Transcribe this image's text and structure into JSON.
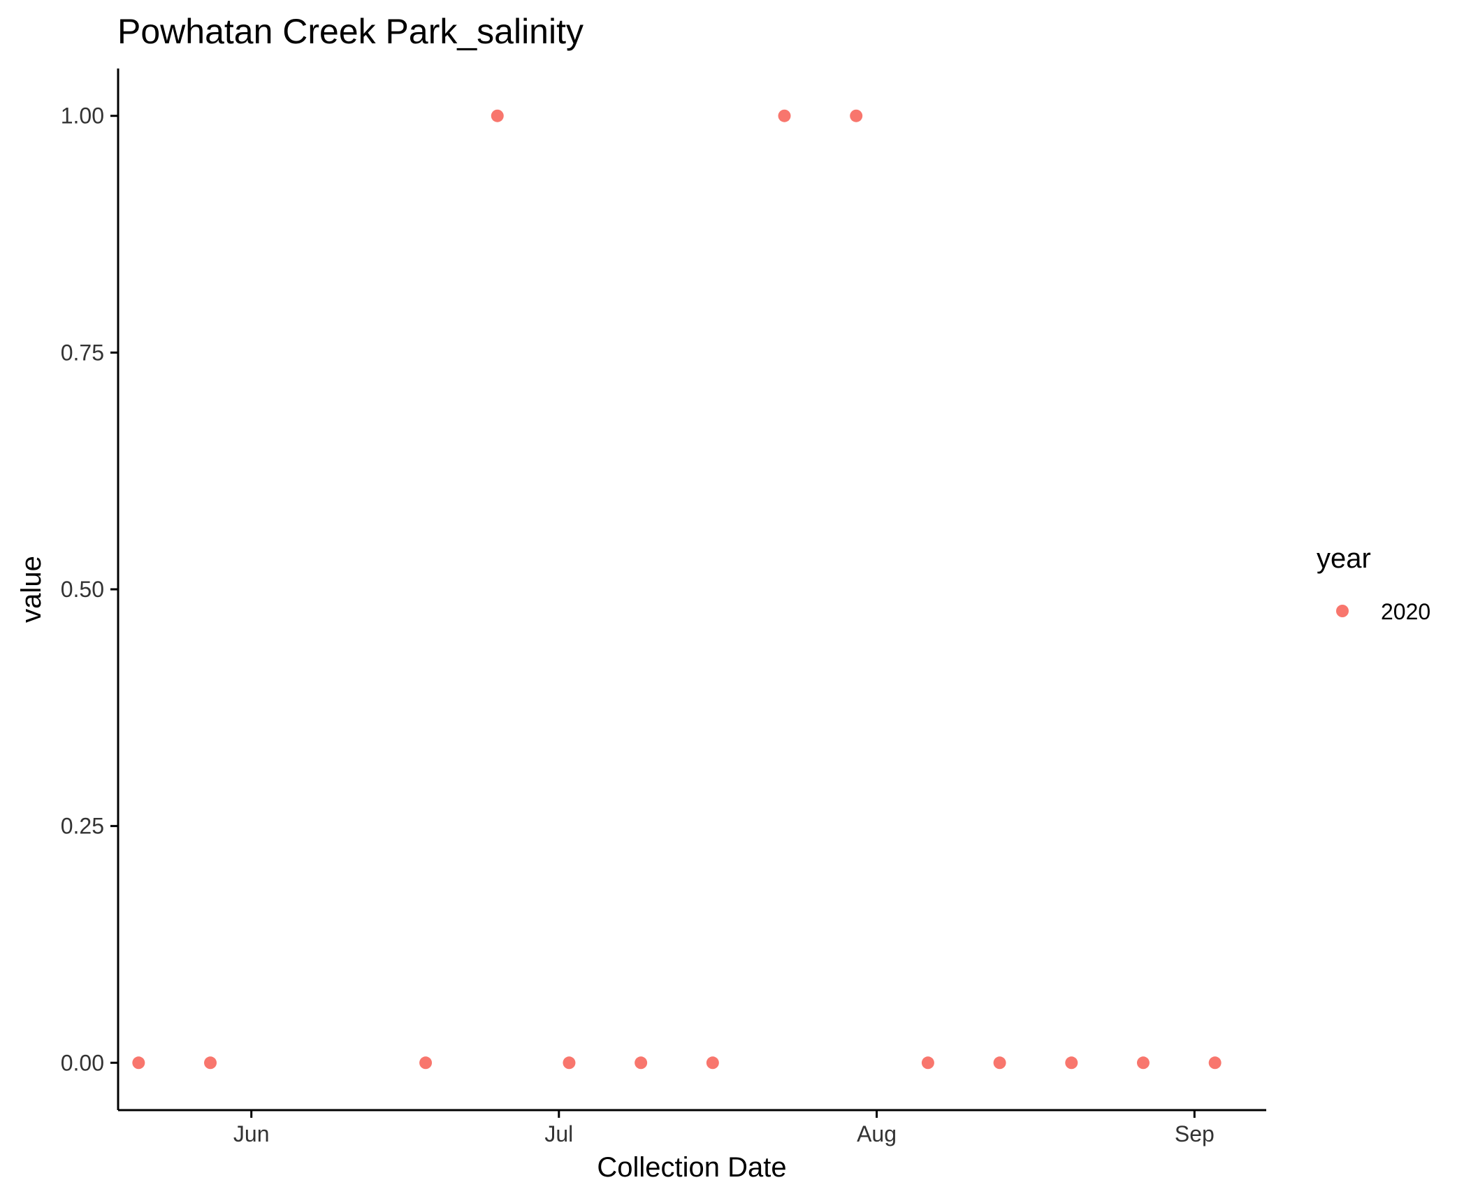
{
  "chart_data": {
    "type": "scatter",
    "title": "Powhatan Creek Park_salinity",
    "xlabel": "Collection Date",
    "ylabel": "value",
    "x_type": "date",
    "xlim": [
      "2020-05-19",
      "2020-09-08"
    ],
    "ylim": [
      -0.05,
      1.05
    ],
    "x_ticks": [
      {
        "date": "2020-06-01",
        "label": "Jun"
      },
      {
        "date": "2020-07-01",
        "label": "Jul"
      },
      {
        "date": "2020-08-01",
        "label": "Aug"
      },
      {
        "date": "2020-09-01",
        "label": "Sep"
      }
    ],
    "y_ticks": [
      {
        "value": 0,
        "label": "0.00"
      },
      {
        "value": 0.25,
        "label": "0.25"
      },
      {
        "value": 0.5,
        "label": "0.50"
      },
      {
        "value": 0.75,
        "label": "0.75"
      },
      {
        "value": 1,
        "label": "1.00"
      }
    ],
    "grid": false,
    "legend": {
      "title": "year",
      "position": "right"
    },
    "series": [
      {
        "name": "2020",
        "color": "#F8766D",
        "points": [
          {
            "x": "2020-05-21",
            "y": 0
          },
          {
            "x": "2020-05-28",
            "y": 0
          },
          {
            "x": "2020-06-18",
            "y": 0
          },
          {
            "x": "2020-06-25",
            "y": 1
          },
          {
            "x": "2020-07-02",
            "y": 0
          },
          {
            "x": "2020-07-09",
            "y": 0
          },
          {
            "x": "2020-07-16",
            "y": 0
          },
          {
            "x": "2020-07-23",
            "y": 1
          },
          {
            "x": "2020-07-30",
            "y": 1
          },
          {
            "x": "2020-08-06",
            "y": 0
          },
          {
            "x": "2020-08-13",
            "y": 0
          },
          {
            "x": "2020-08-20",
            "y": 0
          },
          {
            "x": "2020-08-27",
            "y": 0
          },
          {
            "x": "2020-09-03",
            "y": 0
          }
        ]
      }
    ]
  }
}
